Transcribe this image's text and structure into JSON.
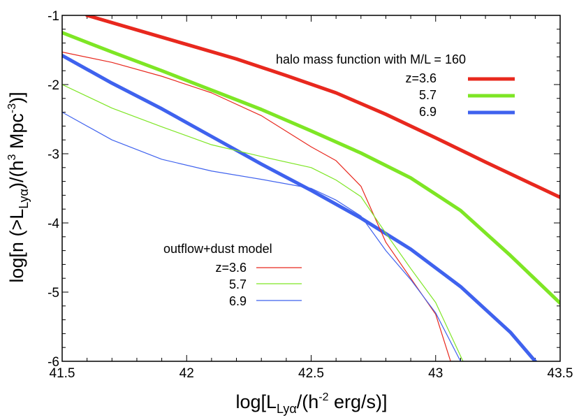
{
  "chart_data": {
    "type": "line",
    "xlim": [
      41.5,
      43.5
    ],
    "ylim": [
      -6,
      -1
    ],
    "x_ticks": [
      {
        "value": 41.5,
        "label": "41.5"
      },
      {
        "value": 42,
        "label": "42"
      },
      {
        "value": 42.5,
        "label": "42.5"
      },
      {
        "value": 43,
        "label": "43"
      },
      {
        "value": 43.5,
        "label": "43.5"
      }
    ],
    "y_ticks": [
      {
        "value": -1,
        "label": "-1"
      },
      {
        "value": -2,
        "label": "-2"
      },
      {
        "value": -3,
        "label": "-3"
      },
      {
        "value": -4,
        "label": "-4"
      },
      {
        "value": -5,
        "label": "-5"
      },
      {
        "value": -6,
        "label": "-6"
      }
    ],
    "x_minor_step": 0.1,
    "y_minor_step": 0.2,
    "xlabel": {
      "prefix": "log[L",
      "sub": "Lyα",
      "middle": "/(h",
      "sup": "-2",
      "suffix": " erg/s)]"
    },
    "ylabel": {
      "prefix": "log[n (>L",
      "sub": "Lyα",
      "middle": ")/(h",
      "sup1": "3",
      "middle2": " Mpc",
      "sup2": "-3",
      "suffix": ")]"
    },
    "legends": [
      {
        "title": "halo mass function with  M/L = 160",
        "entries": [
          {
            "label": "z=3.6",
            "series": "halo-z36"
          },
          {
            "label": "5.7",
            "series": "halo-z57"
          },
          {
            "label": "6.9",
            "series": "halo-z69"
          }
        ]
      },
      {
        "title": "outflow+dust model",
        "entries": [
          {
            "label": "z=3.6",
            "series": "model-z36"
          },
          {
            "label": "5.7",
            "series": "model-z57"
          },
          {
            "label": "6.9",
            "series": "model-z69"
          }
        ]
      }
    ],
    "series": [
      {
        "id": "halo-z36",
        "name": "halo mass function z=3.6",
        "color": "#e8281e",
        "width": "thick",
        "x": [
          41.6,
          41.8,
          42.0,
          42.2,
          42.4,
          42.6,
          42.8,
          43.0,
          43.2,
          43.4,
          43.5
        ],
        "y": [
          -1.0,
          -1.21,
          -1.42,
          -1.63,
          -1.87,
          -2.12,
          -2.43,
          -2.77,
          -3.12,
          -3.46,
          -3.63
        ]
      },
      {
        "id": "halo-z57",
        "name": "halo mass function z=5.7",
        "color": "#7ee625",
        "width": "thick",
        "x": [
          41.5,
          41.7,
          41.9,
          42.1,
          42.3,
          42.5,
          42.7,
          42.9,
          43.1,
          43.3,
          43.5
        ],
        "y": [
          -1.25,
          -1.53,
          -1.8,
          -2.08,
          -2.36,
          -2.67,
          -2.99,
          -3.35,
          -3.82,
          -4.47,
          -5.16
        ]
      },
      {
        "id": "halo-z69",
        "name": "halo mass function z=6.9",
        "color": "#3f62ee",
        "width": "thick",
        "x": [
          41.5,
          41.7,
          41.9,
          42.1,
          42.3,
          42.5,
          42.7,
          42.9,
          43.1,
          43.3,
          43.4
        ],
        "y": [
          -1.58,
          -1.98,
          -2.35,
          -2.75,
          -3.15,
          -3.53,
          -3.93,
          -4.38,
          -4.92,
          -5.58,
          -6.0
        ]
      },
      {
        "id": "model-z36",
        "name": "outflow+dust model z=3.6",
        "color": "#e8281e",
        "width": "thin",
        "x": [
          41.5,
          41.7,
          41.9,
          42.1,
          42.3,
          42.5,
          42.6,
          42.7,
          42.8,
          42.9,
          43.0,
          43.06
        ],
        "y": [
          -1.53,
          -1.68,
          -1.88,
          -2.12,
          -2.45,
          -2.9,
          -3.1,
          -3.47,
          -4.28,
          -4.8,
          -5.32,
          -6.0
        ]
      },
      {
        "id": "model-z57",
        "name": "outflow+dust model z=5.7",
        "color": "#7ee625",
        "width": "thin",
        "x": [
          41.5,
          41.7,
          41.9,
          42.1,
          42.3,
          42.5,
          42.6,
          42.7,
          42.8,
          42.9,
          43.0,
          43.11
        ],
        "y": [
          -2.0,
          -2.34,
          -2.61,
          -2.87,
          -3.04,
          -3.2,
          -3.38,
          -3.62,
          -4.15,
          -4.66,
          -5.15,
          -6.0
        ]
      },
      {
        "id": "model-z69",
        "name": "outflow+dust model z=6.9",
        "color": "#3f62ee",
        "width": "thin",
        "x": [
          41.5,
          41.7,
          41.9,
          42.1,
          42.3,
          42.5,
          42.6,
          42.7,
          42.8,
          42.9,
          43.0,
          43.1
        ],
        "y": [
          -2.4,
          -2.8,
          -3.08,
          -3.25,
          -3.37,
          -3.5,
          -3.67,
          -3.9,
          -4.4,
          -4.82,
          -5.3,
          -6.0
        ]
      }
    ]
  }
}
